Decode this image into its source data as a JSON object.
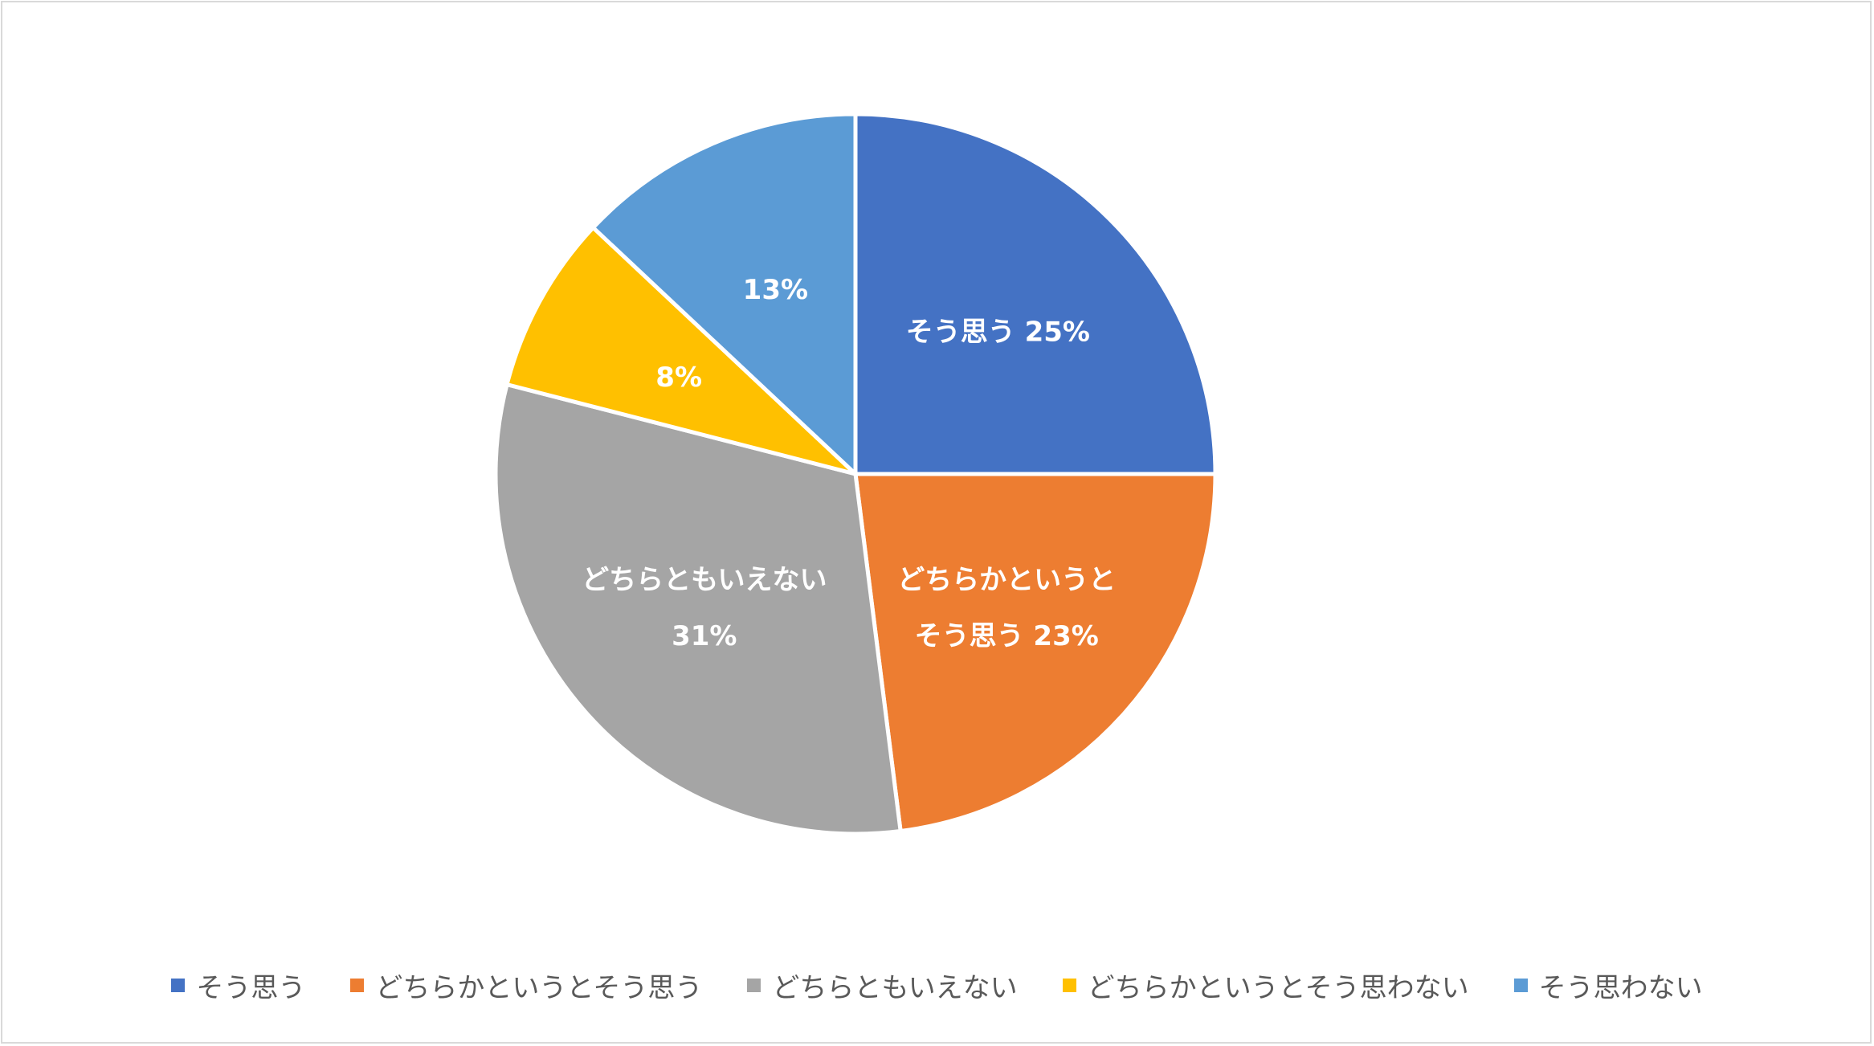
{
  "chart_data": {
    "type": "pie",
    "title": "",
    "categories": [
      "そう思う",
      "どちらかというとそう思う",
      "どちらともいえない",
      "どちらかというとそう思わない",
      "そう思わない"
    ],
    "values": [
      25,
      23,
      31,
      8,
      13
    ],
    "value_labels": [
      "25%",
      "23%",
      "31%",
      "8%",
      "13%"
    ],
    "slice_labels": [
      [
        "そう思う 25%"
      ],
      [
        "どちらかというと",
        "そう思う 23%"
      ],
      [
        "どちらともいえない",
        "31%"
      ],
      [
        "8%"
      ],
      [
        "13%"
      ]
    ],
    "colors": [
      "#4472C4",
      "#ED7D31",
      "#A5A5A5",
      "#FFC000",
      "#5B9BD5"
    ],
    "start_angle_deg": 0,
    "direction": "clockwise",
    "legend_position": "bottom"
  }
}
